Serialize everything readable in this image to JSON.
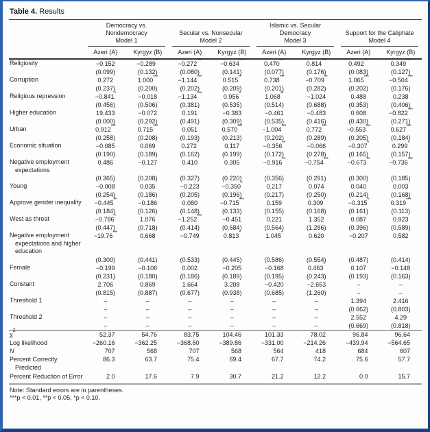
{
  "colors": {
    "frame_border": "#2f62b0",
    "frame_border_dark": "#1d3f7d",
    "rule_dark": "#46464a",
    "rule_gray": "#a2a2aa",
    "text": "#1e1e1e"
  },
  "title": {
    "prefix": "Table 4.",
    "rest": " Results"
  },
  "table": {
    "groups": [
      {
        "label_lines": [
          "Democracy vs.",
          "Nondemocracy",
          "Model 1"
        ],
        "cols": [
          "Azeri (A)",
          "Kyrgyz (B)"
        ]
      },
      {
        "label_lines": [
          "Secular vs. Nonsecular",
          "Model 2"
        ],
        "cols": [
          "Azeri (A)",
          "Kyrgyz (B)"
        ]
      },
      {
        "label_lines": [
          "Islamic vs. Secular",
          "Democracy",
          "Model 3"
        ],
        "cols": [
          "Azeri (A)",
          "Kyrgyz (B)"
        ]
      },
      {
        "label_lines": [
          "Support for the Caliphate",
          "Model 4"
        ],
        "cols": [
          "Azeri (A)",
          "Kyrgyz (B)"
        ]
      }
    ],
    "coef_rows": [
      {
        "label": "Religiosity",
        "coefs": [
          "−0.152",
          "−0.289**",
          "−0.272***",
          "−0.634***",
          "0.470***",
          "0.814***",
          "0.492***",
          "0.349***"
        ],
        "ses": [
          "(0.099)",
          "(0.132)",
          "(0.080)",
          "(0.141)",
          "(0.077)",
          "(0.176)",
          "(0.083)",
          "(0.127)"
        ]
      },
      {
        "label": "Corruption",
        "coefs": [
          "0.272",
          "1.000***",
          "−1.144***",
          "0.515**",
          "0.738***",
          "−0.709**",
          "1.065***",
          "−0.504***"
        ],
        "ses": [
          "(0.237)",
          "(0.200)",
          "(0.202)",
          "(0.209)",
          "(0.201)",
          "(0.282)",
          "(0.202)",
          "(0.176)"
        ]
      },
      {
        "label": "Religious repression",
        "coefs": [
          "−0.841*",
          "−0.018",
          "−1.134***",
          "0.956*",
          "1.068**",
          "−1.024",
          "0.488",
          "0.238"
        ],
        "ses": [
          "(0.456)",
          "(0.506)",
          "(0.381)",
          "(0.535)",
          "(0.514)",
          "(0.688)",
          "(0.353)",
          "(0.406)"
        ]
      },
      {
        "label": "Higher education",
        "coefs": [
          "19.433",
          "−0.072",
          "0.191",
          "−0.383",
          "−0.461",
          "−0.483",
          "0.608",
          "−0.822***"
        ],
        "ses": [
          "(0.000)",
          "(0.292)",
          "(0.491)",
          "(0.309)",
          "(0.535)",
          "(0.416)",
          "(0.430)",
          "(0.271)"
        ]
      },
      {
        "label": "Urban",
        "coefs": [
          "0.912***",
          "0.715***",
          "0.051",
          "0.570***",
          "−1.004***",
          "0.772***",
          "−0.553***",
          "0.627***"
        ],
        "ses": [
          "(0.258)",
          "(0.208)",
          "(0.193)",
          "(0.213)",
          "(0.202)",
          "(0.289)",
          "(0.205)",
          "(0.184)"
        ]
      },
      {
        "label": "Economic situation",
        "coefs": [
          "−0.085",
          "0.069",
          "0.272*",
          "0.117",
          "−0.356**",
          "−0.066",
          "−0.307*",
          "0.299*"
        ],
        "ses": [
          "(0.190)",
          "(0.189)",
          "(0.162)",
          "(0.199)",
          "(0.172)",
          "(0.278)",
          "(0.165)",
          "(0.157)"
        ]
      },
      {
        "label": "Negative employment expectations",
        "coefs": [
          "0.486",
          "−0.127",
          "0.410",
          "0.305",
          "−0.916**",
          "−0.754***",
          "−0.673**",
          "−0.736***"
        ],
        "ses": [
          "(0.365)",
          "(0.208)",
          "(0.327)",
          "(0.220)",
          "(0.356)",
          "(0.291)",
          "(0.300)",
          "(0.185)"
        ]
      },
      {
        "label": "Young",
        "coefs": [
          "−0.008",
          "0.035",
          "−0.223",
          "−0.350*",
          "0.217",
          "0.074",
          "0.040",
          "0.003"
        ],
        "ses": [
          "(0.254)",
          "(0.186)",
          "(0.205)",
          "(0.196)",
          "(0.217)",
          "(0.250)",
          "(0.214)",
          "(0.168)"
        ]
      },
      {
        "label": "Approve gender inequality",
        "coefs": [
          "−0.445**",
          "−0.186",
          "0.080",
          "−0.715***",
          "0.159",
          "0.309*",
          "−0.315*",
          "0.319***"
        ],
        "ses": [
          "(0.184)",
          "(0.126)",
          "(0.148)",
          "(0.133)",
          "(0.155)",
          "(0.168)",
          "(0.161)",
          "(0.113)"
        ]
      },
      {
        "label": "West as threat",
        "coefs": [
          "−0.786*",
          "1.076",
          "−1.252***",
          "−0.451",
          "0.221",
          "1.352",
          "0.087",
          "0.923"
        ],
        "ses": [
          "(0.447)",
          "(0.718)",
          "(0.414)",
          "(0.684)",
          "(0.564)",
          "(1.286)",
          "(0.396)",
          "(0.589)"
        ]
      },
      {
        "label": "Negative employment expectations and higher education",
        "coefs": [
          "−19.76***",
          "0.668",
          "−0.749",
          "0.813*",
          "1.045*",
          "0.620",
          "−0.207",
          "0.582"
        ],
        "ses": [
          "(0.300)",
          "(0.441)",
          "(0.533)",
          "(0.445)",
          "(0.586)",
          "(0.554)",
          "(0.487)",
          "(0.414)"
        ]
      },
      {
        "label": "Female",
        "coefs": [
          "−0.199",
          "−0.106",
          "0.002",
          "−0.205",
          "−0.168",
          "0.463*",
          "0.107",
          "−0.148"
        ],
        "ses": [
          "(0.231)",
          "(0.180)",
          "(0.186)",
          "(0.189)",
          "(0.195)",
          "(0.243)",
          "(0.193)",
          "(0.163)"
        ]
      },
      {
        "label": "Constant",
        "coefs": [
          "2.706",
          "0.869",
          "1.664",
          "3.208",
          "−0.420",
          "−2.653",
          "–",
          "–"
        ],
        "ses": [
          "(0.815)",
          "(0.887)",
          "(0.677)",
          "(0.938)",
          "(0.685)",
          "(1.260)",
          "–",
          "–"
        ]
      },
      {
        "label": "Threshold 1",
        "coefs": [
          "–",
          "–",
          "–",
          "–",
          "–",
          "–",
          "1.394",
          "2.416"
        ],
        "ses": [
          "–",
          "–",
          "–",
          "–",
          "–",
          "–",
          "(0.662)",
          "(0.803)"
        ]
      },
      {
        "label": "Threshold 2",
        "coefs": [
          "–",
          "–",
          "–",
          "–",
          "–",
          "–",
          "2.552",
          "4.29"
        ],
        "ses": [
          "–",
          "–",
          "–",
          "–",
          "–",
          "–",
          "(0.669)",
          "(0.818)"
        ]
      }
    ],
    "stat_rows": [
      {
        "label": "χ",
        "label_sup": "2",
        "values": [
          "52.37",
          "54.76",
          "83.75",
          "104.46",
          "101.33",
          "78.02",
          "96.84",
          "96.64"
        ]
      },
      {
        "label": "Log likelihood",
        "values": [
          "−260.16",
          "−362.25",
          "−368.60",
          "−389.86",
          "−331.00",
          "−214.26",
          "−439.94",
          "−564.65"
        ]
      },
      {
        "label": "N",
        "italic": true,
        "values": [
          "707",
          "568",
          "707",
          "568",
          "564",
          "418",
          "684",
          "607"
        ]
      },
      {
        "label": "Percent Correctly Predicted",
        "values": [
          "86.3",
          "63.7",
          "75.4",
          "69.4",
          "67.7",
          "74.2",
          "75.6",
          "57.7"
        ]
      },
      {
        "label": "Percent Reduction of Error",
        "values": [
          "2.0",
          "17.6",
          "7.9",
          "30.7",
          "21.2",
          "12.2",
          "0.0",
          "15.7"
        ]
      }
    ]
  },
  "note": {
    "line1": "Note: Standard errors are in parentheses.",
    "line2": "***p < 0.01, **p < 0.05, *p < 0.10."
  }
}
